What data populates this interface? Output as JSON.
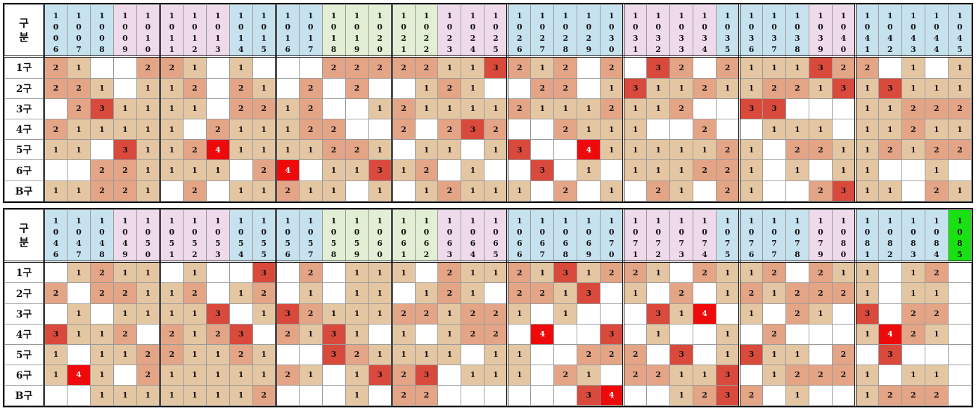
{
  "colors": {
    "v1": "#e4c6a2",
    "v2": "#e4a486",
    "v3": "#d94a3c",
    "v4": "#ee0a0a",
    "header_blue": "#c6e2ee",
    "header_pink": "#eedaea",
    "header_green": "#e2efd4",
    "header_highlight": "#19e013"
  },
  "tables": [
    {
      "corner": [
        "구",
        "분"
      ],
      "col_groups": 11,
      "columns": [
        "1006",
        "1007",
        "1008",
        "1009",
        "1010",
        "1011",
        "1012",
        "1013",
        "1014",
        "1015",
        "1016",
        "1017",
        "1018",
        "1019",
        "1020",
        "1021",
        "1022",
        "1023",
        "1024",
        "1025",
        "1026",
        "1027",
        "1028",
        "1029",
        "1030",
        "1031",
        "1032",
        "1033",
        "1034",
        "1035",
        "1036",
        "1037",
        "1038",
        "1039",
        "1040",
        "1041",
        "1042",
        "1043",
        "1044",
        "1045"
      ],
      "header_colors": [
        "b",
        "b",
        "b",
        "p",
        "p",
        "p",
        "p",
        "p",
        "b",
        "b",
        "b",
        "b",
        "g",
        "g",
        "g",
        "g",
        "g",
        "p",
        "p",
        "p",
        "b",
        "b",
        "b",
        "b",
        "b",
        "p",
        "p",
        "p",
        "p",
        "b",
        "b",
        "b",
        "b",
        "p",
        "p",
        "b",
        "b",
        "b",
        "b",
        "b"
      ],
      "rows": [
        {
          "label": "1구",
          "cells": [
            2,
            1,
            0,
            0,
            2,
            2,
            1,
            0,
            1,
            0,
            0,
            0,
            2,
            2,
            2,
            2,
            2,
            1,
            1,
            3,
            2,
            1,
            2,
            0,
            2,
            0,
            3,
            2,
            0,
            2,
            1,
            1,
            1,
            3,
            2,
            2,
            0,
            1,
            0,
            1
          ]
        },
        {
          "label": "2구",
          "cells": [
            2,
            2,
            1,
            0,
            1,
            1,
            2,
            0,
            2,
            1,
            0,
            2,
            0,
            2,
            0,
            0,
            1,
            2,
            1,
            0,
            0,
            2,
            2,
            0,
            1,
            3,
            1,
            1,
            2,
            1,
            1,
            2,
            2,
            1,
            3,
            1,
            3,
            1,
            1,
            1
          ]
        },
        {
          "label": "3구",
          "cells": [
            0,
            2,
            3,
            1,
            1,
            1,
            1,
            0,
            2,
            2,
            1,
            2,
            0,
            0,
            1,
            2,
            1,
            1,
            1,
            1,
            2,
            1,
            1,
            1,
            2,
            1,
            1,
            2,
            0,
            0,
            3,
            3,
            0,
            0,
            0,
            1,
            1,
            2,
            2,
            2
          ]
        },
        {
          "label": "4구",
          "cells": [
            2,
            1,
            1,
            1,
            1,
            1,
            0,
            2,
            1,
            1,
            1,
            2,
            2,
            0,
            0,
            2,
            0,
            2,
            3,
            2,
            0,
            0,
            2,
            1,
            1,
            1,
            0,
            0,
            2,
            0,
            0,
            1,
            1,
            1,
            0,
            1,
            1,
            2,
            1,
            1
          ]
        },
        {
          "label": "5구",
          "cells": [
            1,
            1,
            0,
            3,
            1,
            1,
            2,
            4,
            1,
            1,
            1,
            1,
            2,
            2,
            1,
            0,
            1,
            1,
            0,
            1,
            3,
            0,
            0,
            4,
            1,
            1,
            1,
            1,
            1,
            2,
            1,
            0,
            2,
            2,
            1,
            1,
            2,
            1,
            2,
            2
          ]
        },
        {
          "label": "6구",
          "cells": [
            0,
            0,
            2,
            2,
            1,
            1,
            1,
            1,
            0,
            2,
            4,
            0,
            1,
            1,
            3,
            1,
            2,
            0,
            1,
            0,
            0,
            3,
            0,
            1,
            0,
            1,
            1,
            1,
            2,
            2,
            1,
            0,
            1,
            0,
            1,
            1,
            0,
            0,
            1,
            0
          ]
        },
        {
          "label": "B구",
          "cells": [
            1,
            1,
            2,
            2,
            1,
            0,
            2,
            0,
            1,
            1,
            2,
            1,
            1,
            0,
            1,
            0,
            1,
            2,
            1,
            1,
            1,
            0,
            2,
            0,
            1,
            0,
            2,
            1,
            0,
            2,
            1,
            0,
            0,
            2,
            3,
            1,
            1,
            0,
            2,
            1
          ]
        }
      ]
    },
    {
      "corner": [
        "구",
        "분"
      ],
      "col_groups": 11,
      "columns": [
        "1046",
        "1047",
        "1048",
        "1049",
        "1050",
        "1051",
        "1052",
        "1053",
        "1054",
        "1055",
        "1056",
        "1057",
        "1058",
        "1059",
        "1060",
        "1061",
        "1062",
        "1063",
        "1064",
        "1065",
        "1066",
        "1067",
        "1068",
        "1069",
        "1070",
        "1071",
        "1072",
        "1073",
        "1074",
        "1075",
        "1076",
        "1077",
        "1078",
        "1079",
        "1080",
        "1081",
        "1082",
        "1083",
        "1084",
        "1085"
      ],
      "header_colors": [
        "b",
        "b",
        "b",
        "p",
        "p",
        "p",
        "p",
        "p",
        "b",
        "b",
        "b",
        "b",
        "g",
        "g",
        "g",
        "g",
        "g",
        "p",
        "p",
        "p",
        "b",
        "b",
        "b",
        "b",
        "b",
        "p",
        "p",
        "p",
        "p",
        "b",
        "b",
        "b",
        "b",
        "p",
        "p",
        "b",
        "b",
        "b",
        "b",
        "hl"
      ],
      "rows": [
        {
          "label": "1구",
          "cells": [
            0,
            1,
            2,
            1,
            1,
            0,
            1,
            0,
            0,
            3,
            0,
            2,
            0,
            1,
            1,
            1,
            0,
            2,
            1,
            1,
            2,
            1,
            3,
            1,
            2,
            2,
            1,
            0,
            2,
            1,
            1,
            2,
            0,
            2,
            1,
            1,
            0,
            1,
            2,
            0
          ]
        },
        {
          "label": "2구",
          "cells": [
            2,
            0,
            2,
            2,
            1,
            1,
            2,
            0,
            1,
            2,
            0,
            1,
            0,
            1,
            1,
            0,
            1,
            2,
            1,
            0,
            2,
            2,
            1,
            3,
            0,
            1,
            0,
            2,
            0,
            1,
            2,
            1,
            2,
            2,
            2,
            1,
            0,
            1,
            1,
            0
          ]
        },
        {
          "label": "3구",
          "cells": [
            0,
            1,
            0,
            1,
            1,
            1,
            1,
            3,
            0,
            1,
            3,
            2,
            1,
            1,
            1,
            2,
            2,
            1,
            2,
            2,
            1,
            0,
            1,
            0,
            0,
            0,
            3,
            1,
            4,
            0,
            1,
            0,
            2,
            1,
            0,
            3,
            0,
            2,
            2,
            0
          ]
        },
        {
          "label": "4구",
          "cells": [
            3,
            1,
            1,
            2,
            0,
            2,
            1,
            2,
            3,
            0,
            2,
            1,
            3,
            1,
            0,
            1,
            0,
            1,
            2,
            2,
            0,
            4,
            0,
            0,
            3,
            0,
            1,
            0,
            0,
            1,
            0,
            2,
            0,
            0,
            0,
            1,
            4,
            2,
            1,
            0
          ]
        },
        {
          "label": "5구",
          "cells": [
            1,
            0,
            1,
            1,
            2,
            2,
            1,
            1,
            2,
            1,
            0,
            0,
            3,
            2,
            1,
            1,
            1,
            1,
            0,
            1,
            1,
            0,
            0,
            2,
            2,
            2,
            0,
            3,
            0,
            1,
            3,
            1,
            1,
            0,
            2,
            0,
            3,
            0,
            0,
            0
          ]
        },
        {
          "label": "6구",
          "cells": [
            1,
            4,
            1,
            0,
            2,
            1,
            1,
            1,
            1,
            1,
            2,
            1,
            0,
            1,
            3,
            2,
            3,
            0,
            1,
            1,
            1,
            0,
            2,
            1,
            0,
            2,
            2,
            1,
            1,
            3,
            0,
            1,
            2,
            2,
            2,
            1,
            0,
            1,
            1,
            0
          ]
        },
        {
          "label": "B구",
          "cells": [
            0,
            0,
            1,
            1,
            1,
            1,
            1,
            1,
            1,
            2,
            0,
            0,
            0,
            1,
            0,
            2,
            2,
            0,
            0,
            0,
            0,
            0,
            0,
            3,
            4,
            0,
            0,
            1,
            2,
            3,
            2,
            0,
            1,
            0,
            0,
            1,
            2,
            2,
            2,
            0
          ]
        }
      ]
    }
  ]
}
